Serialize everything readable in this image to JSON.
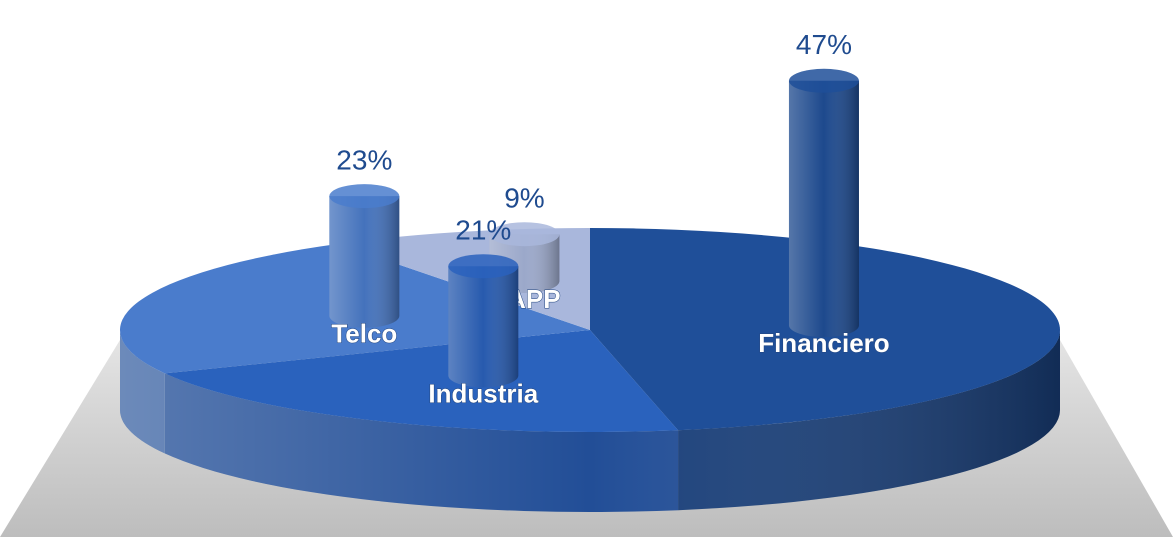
{
  "chart_data": {
    "type": "pie",
    "categories": [
      "Financiero",
      "Industria",
      "Telco",
      "AAPP"
    ],
    "values": [
      47,
      21,
      23,
      9
    ],
    "value_labels": [
      "47%",
      "21%",
      "23%",
      "9%"
    ],
    "colors": [
      "#1f4f99",
      "#2a62bd",
      "#4a7ccc",
      "#a9b7dc"
    ]
  }
}
